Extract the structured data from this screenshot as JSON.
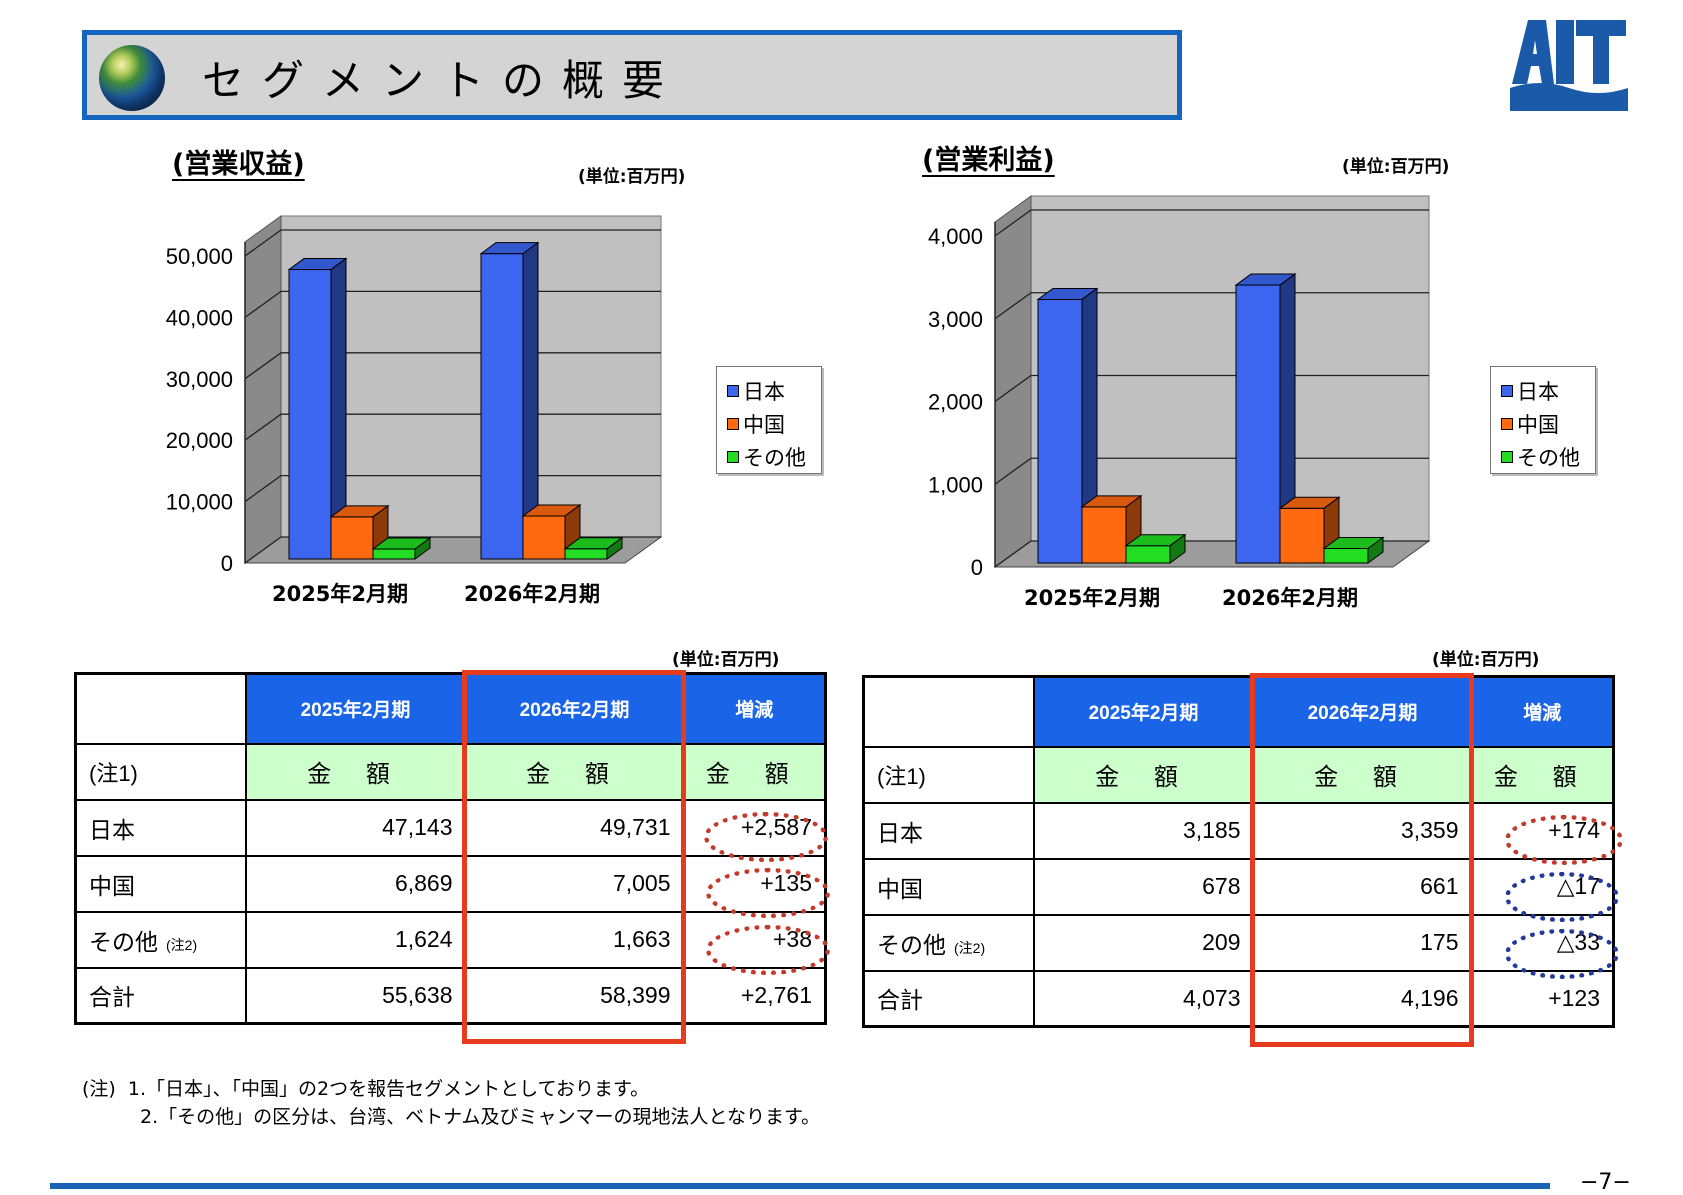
{
  "title": "セグメントの概要",
  "colors": {
    "japan": "#3c66f0",
    "china": "#ff6a10",
    "other": "#22dd22",
    "header_blue": "#1a64e8",
    "highlight": "#e63b1e"
  },
  "unit_label": "(単位:百万円)",
  "chart_data": [
    {
      "type": "bar",
      "title": "(営業収益)",
      "unit": "(単位:百万円)",
      "categories": [
        "2025年2月期",
        "2026年2月期"
      ],
      "series": [
        {
          "name": "日本",
          "values": [
            47143,
            49731
          ]
        },
        {
          "name": "中国",
          "values": [
            6869,
            7005
          ]
        },
        {
          "name": "その他",
          "values": [
            1624,
            1663
          ]
        }
      ],
      "ylim": [
        0,
        50000
      ],
      "yticks": [
        "0",
        "10,000",
        "20,000",
        "30,000",
        "40,000",
        "50,000"
      ],
      "legend_position": "right",
      "grid": true
    },
    {
      "type": "bar",
      "title": "(営業利益)",
      "unit": "(単位:百万円)",
      "categories": [
        "2025年2月期",
        "2026年2月期"
      ],
      "series": [
        {
          "name": "日本",
          "values": [
            3185,
            3359
          ]
        },
        {
          "name": "中国",
          "values": [
            678,
            661
          ]
        },
        {
          "name": "その他",
          "values": [
            209,
            175
          ]
        }
      ],
      "ylim": [
        0,
        4000
      ],
      "yticks": [
        "0",
        "1,000",
        "2,000",
        "3,000",
        "4,000"
      ],
      "legend_position": "right",
      "grid": true
    }
  ],
  "revenue_table": {
    "unit": "(単位:百万円)",
    "headers": [
      "",
      "2025年2月期",
      "2026年2月期",
      "増減"
    ],
    "subheader_note": "(注1)",
    "subheader": "金 額",
    "rows": [
      {
        "label": "日本",
        "note": "",
        "v2025": "47,143",
        "v2026": "49,731",
        "diff": "+2,587"
      },
      {
        "label": "中国",
        "note": "",
        "v2025": "6,869",
        "v2026": "7,005",
        "diff": "+135"
      },
      {
        "label": "その他",
        "note": "(注2)",
        "v2025": "1,624",
        "v2026": "1,663",
        "diff": "+38"
      },
      {
        "label": "合計",
        "note": "",
        "v2025": "55,638",
        "v2026": "58,399",
        "diff": "+2,761"
      }
    ]
  },
  "profit_table": {
    "unit": "(単位:百万円)",
    "headers": [
      "",
      "2025年2月期",
      "2026年2月期",
      "増減"
    ],
    "subheader_note": "(注1)",
    "subheader": "金 額",
    "rows": [
      {
        "label": "日本",
        "note": "",
        "v2025": "3,185",
        "v2026": "3,359",
        "diff": "+174"
      },
      {
        "label": "中国",
        "note": "",
        "v2025": "678",
        "v2026": "661",
        "diff": "△17"
      },
      {
        "label": "その他",
        "note": "(注2)",
        "v2025": "209",
        "v2026": "175",
        "diff": "△33"
      },
      {
        "label": "合計",
        "note": "",
        "v2025": "4,073",
        "v2026": "4,196",
        "diff": "+123"
      }
    ]
  },
  "notes": {
    "label": "(注)",
    "line1": "1.「日本」、「中国」の2つを報告セグメントとしております。",
    "line2": "2.「その他」の区分は、台湾、ベトナム及びミャンマーの現地法人となります。"
  },
  "page_number": "−7−",
  "logo_text": "AIT"
}
